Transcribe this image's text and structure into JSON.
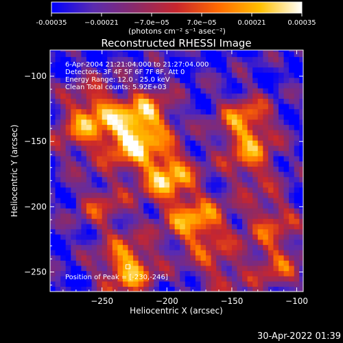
{
  "chart_data": {
    "type": "heatmap",
    "title": "Reconstructed RHESSI Image",
    "xlabel": "Heliocentric X (arcsec)",
    "ylabel": "Heliocentric Y (arcsec)",
    "xlim": [
      -290,
      -95
    ],
    "ylim": [
      -265,
      -80
    ],
    "xticks": [
      -250,
      -200,
      -150,
      -100
    ],
    "xtick_labels": [
      "−250",
      "−200",
      "−150",
      "−100"
    ],
    "yticks": [
      -100,
      -150,
      -200,
      -250
    ],
    "ytick_labels": [
      "−100",
      "−150",
      "−200",
      "−250"
    ],
    "colorbar": {
      "min": -0.00035,
      "max": 0.00035,
      "ticks": [
        -0.00035,
        -0.00021,
        -7e-05,
        7e-05,
        0.00021,
        0.00035
      ],
      "tick_labels": [
        "-0.00035",
        "−0.00021",
        "−7.0e−05",
        "7.0e−05",
        "0.00021",
        "0.00035"
      ],
      "unit_label": "(photons cm⁻² s⁻¹ asec⁻²)",
      "colors": [
        "#0000ff",
        "#5a2bb0",
        "#8a2a6a",
        "#c8262d",
        "#ff6a00",
        "#ffc000",
        "#ffffff"
      ]
    },
    "annotations": [
      "6-Apr-2004 21:21:04.000 to 21:27:04.000",
      "Detectors: 3F 4F 5F 6F 7F 8F, Att 0",
      "Energy Range: 12.0 - 25.0 keV",
      "Clean     Total counts: 5.92E+03"
    ],
    "peak_label": "Position of Peak = [-230,-246]",
    "peak": [
      -230,
      -246
    ],
    "bright_sources": [
      {
        "x": -200,
        "y": -175,
        "intensity": 1.0
      },
      {
        "x": -230,
        "y": -150,
        "intensity": 0.85
      },
      {
        "x": -215,
        "y": -130,
        "intensity": 0.8
      },
      {
        "x": -255,
        "y": -125,
        "intensity": 0.7
      },
      {
        "x": -230,
        "y": -246,
        "intensity": 1.0
      },
      {
        "x": -140,
        "y": -135,
        "intensity": 0.8
      },
      {
        "x": -135,
        "y": -165,
        "intensity": 0.6
      },
      {
        "x": -120,
        "y": -210,
        "intensity": 0.55
      },
      {
        "x": -170,
        "y": -215,
        "intensity": 0.55
      },
      {
        "x": -250,
        "y": -200,
        "intensity": 0.5
      },
      {
        "x": -115,
        "y": -245,
        "intensity": 0.55
      },
      {
        "x": -185,
        "y": -210,
        "intensity": 0.5
      },
      {
        "x": -270,
        "y": -145,
        "intensity": 0.45
      },
      {
        "x": -160,
        "y": -250,
        "intensity": 0.45
      }
    ],
    "grid": false,
    "legend": "colorbar-top"
  },
  "footer": {
    "timestamp": "30-Apr-2022 01:39"
  }
}
